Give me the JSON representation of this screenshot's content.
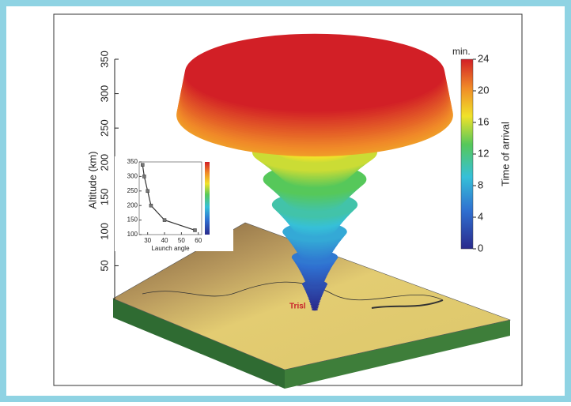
{
  "chart_data": [
    {
      "type": "axis3d",
      "y_label": "Altitude (km)",
      "ylim": [
        0,
        350
      ],
      "yticks": [
        50,
        100,
        150,
        200,
        250,
        300,
        350
      ],
      "annotation": "Trisl"
    },
    {
      "type": "colorbar",
      "title": "Time of arrival",
      "unit_label": "min.",
      "ylim": [
        0,
        24
      ],
      "yticks": [
        0,
        4,
        8,
        12,
        16,
        20,
        24
      ]
    },
    {
      "type": "line",
      "x_label": "Launch angle",
      "x": [
        27,
        28,
        30,
        32,
        40,
        58
      ],
      "series": [
        {
          "color": "#333333",
          "values": [
            340,
            300,
            250,
            200,
            150,
            115
          ]
        }
      ],
      "xlim": [
        25,
        62
      ],
      "xticks": [
        30,
        40,
        50,
        60
      ],
      "ylim": [
        100,
        350
      ],
      "yticks": [
        100,
        150,
        200,
        250,
        300,
        350
      ]
    }
  ]
}
